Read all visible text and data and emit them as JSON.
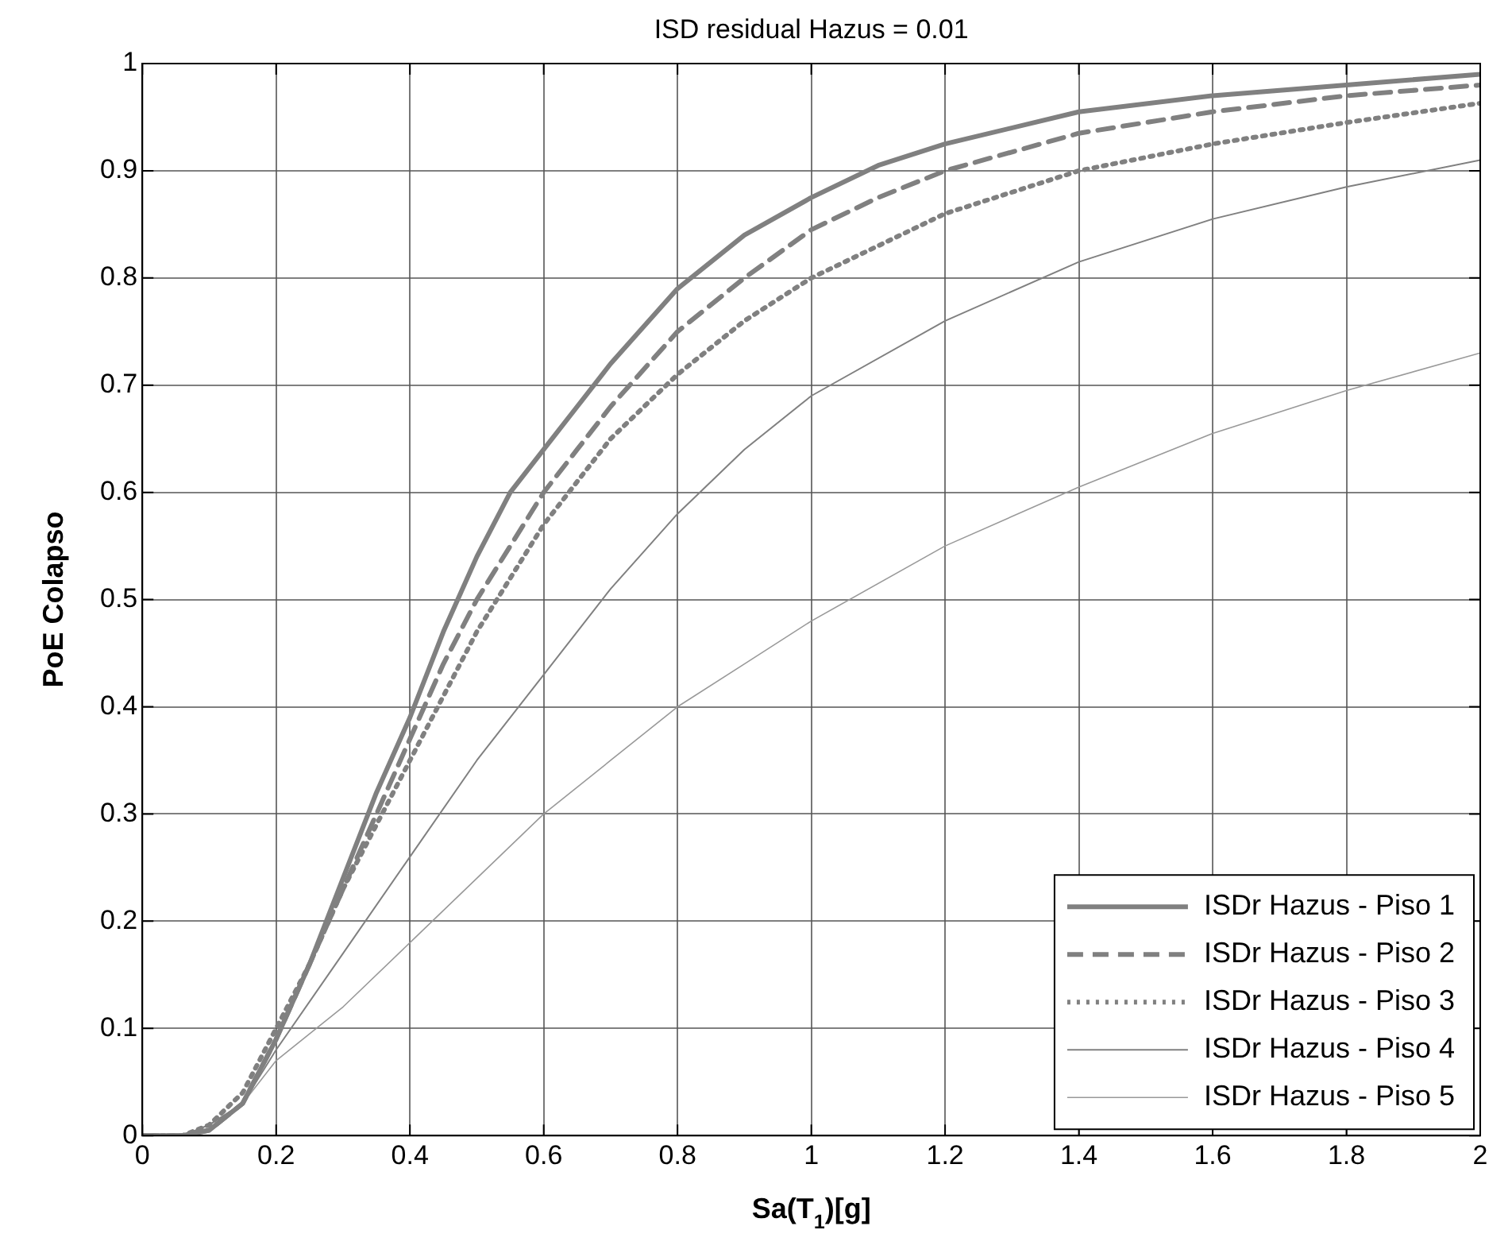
{
  "chart_data": {
    "type": "line",
    "title": "ISD residual Hazus = 0.01",
    "xlabel": "Sa(T$_{1}$)[g]",
    "ylabel": "PoE Colapso",
    "xlim": [
      0,
      2
    ],
    "ylim": [
      0,
      1
    ],
    "xticks": [
      0,
      0.2,
      0.4,
      0.6,
      0.8,
      1,
      1.2,
      1.4,
      1.6,
      1.8,
      2
    ],
    "yticks": [
      0,
      0.1,
      0.2,
      0.3,
      0.4,
      0.5,
      0.6,
      0.7,
      0.8,
      0.9,
      1
    ],
    "grid": true,
    "legend": "bottom right",
    "marker": "none",
    "series": [
      {
        "name": "ISDr Hazus - Piso 1",
        "color": "#808080",
        "line_style": "solid",
        "x": [
          0,
          0.06,
          0.1,
          0.15,
          0.2,
          0.25,
          0.3,
          0.35,
          0.4,
          0.45,
          0.5,
          0.55,
          0.6,
          0.65,
          0.7,
          0.8,
          0.9,
          1,
          1.1,
          1.2,
          1.4,
          1.6,
          1.8,
          2
        ],
        "values": [
          0,
          0,
          0.005,
          0.03,
          0.09,
          0.16,
          0.24,
          0.32,
          0.39,
          0.47,
          0.54,
          0.6,
          0.64,
          0.68,
          0.72,
          0.79,
          0.84,
          0.875,
          0.905,
          0.925,
          0.955,
          0.97,
          0.98,
          0.99
        ]
      },
      {
        "name": "ISDr Hazus - Piso 2",
        "color": "#808080",
        "line_style": "dashed",
        "x": [
          0,
          0.06,
          0.1,
          0.15,
          0.2,
          0.25,
          0.3,
          0.35,
          0.4,
          0.45,
          0.5,
          0.55,
          0.6,
          0.65,
          0.7,
          0.8,
          0.9,
          1,
          1.1,
          1.2,
          1.4,
          1.6,
          1.8,
          2
        ],
        "values": [
          0,
          0,
          0.005,
          0.03,
          0.09,
          0.16,
          0.23,
          0.3,
          0.37,
          0.44,
          0.5,
          0.55,
          0.6,
          0.64,
          0.68,
          0.75,
          0.8,
          0.845,
          0.875,
          0.9,
          0.935,
          0.955,
          0.97,
          0.98
        ]
      },
      {
        "name": "ISDr Hazus - Piso 3",
        "color": "#808080",
        "line_style": "dotted",
        "x": [
          0,
          0.06,
          0.1,
          0.15,
          0.2,
          0.25,
          0.3,
          0.35,
          0.4,
          0.45,
          0.5,
          0.55,
          0.6,
          0.7,
          0.8,
          0.9,
          1,
          1.1,
          1.2,
          1.4,
          1.6,
          1.8,
          2
        ],
        "values": [
          0,
          0,
          0.01,
          0.04,
          0.1,
          0.16,
          0.23,
          0.29,
          0.35,
          0.41,
          0.47,
          0.52,
          0.57,
          0.65,
          0.71,
          0.76,
          0.8,
          0.83,
          0.86,
          0.9,
          0.925,
          0.945,
          0.963
        ]
      },
      {
        "name": "ISDr Hazus - Piso 4",
        "color": "#808080",
        "line_style": "solid",
        "x": [
          0,
          0.06,
          0.1,
          0.15,
          0.2,
          0.3,
          0.4,
          0.5,
          0.6,
          0.7,
          0.8,
          0.9,
          1,
          1.2,
          1.4,
          1.6,
          1.8,
          2
        ],
        "values": [
          0,
          0,
          0.01,
          0.03,
          0.08,
          0.17,
          0.26,
          0.35,
          0.43,
          0.51,
          0.58,
          0.64,
          0.69,
          0.76,
          0.815,
          0.855,
          0.885,
          0.91
        ]
      },
      {
        "name": "ISDr Hazus - Piso 5",
        "color": "#999999",
        "line_style": "solid",
        "x": [
          0,
          0.06,
          0.1,
          0.15,
          0.2,
          0.3,
          0.4,
          0.5,
          0.6,
          0.7,
          0.8,
          0.9,
          1,
          1.2,
          1.4,
          1.6,
          1.8,
          2
        ],
        "values": [
          0,
          0,
          0.01,
          0.03,
          0.07,
          0.12,
          0.18,
          0.24,
          0.3,
          0.35,
          0.4,
          0.44,
          0.48,
          0.55,
          0.605,
          0.655,
          0.695,
          0.73
        ]
      }
    ]
  }
}
